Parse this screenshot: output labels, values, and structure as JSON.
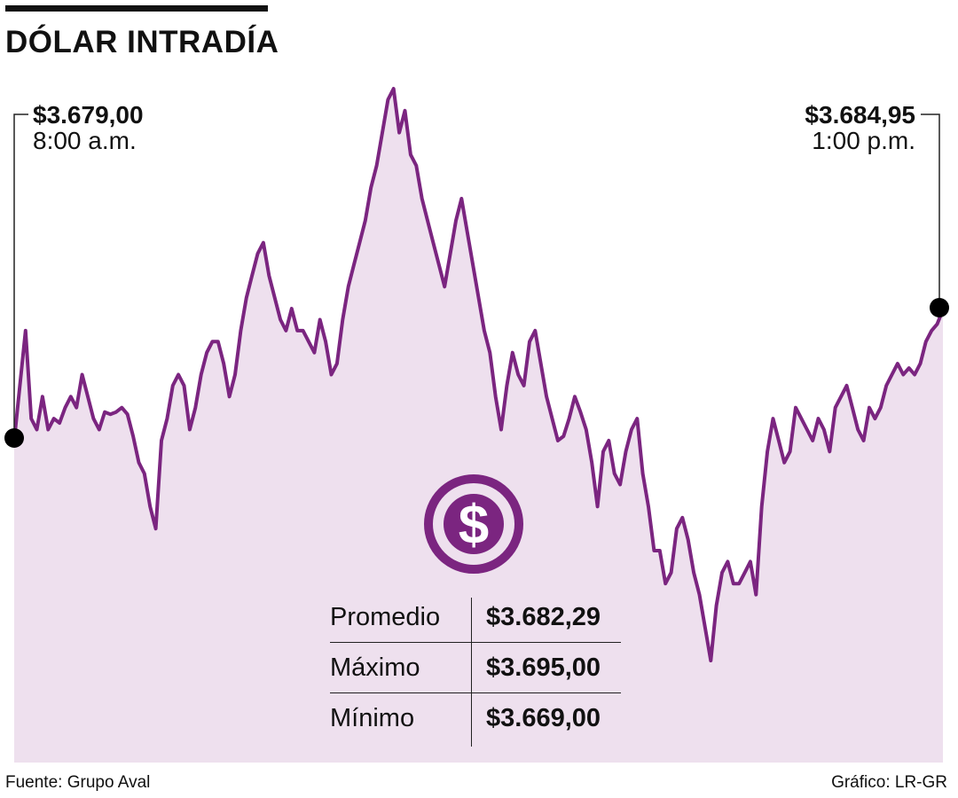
{
  "title": "DÓLAR INTRADÍA",
  "annotations": {
    "start": {
      "value": "$3.679,00",
      "time": "8:00 a.m."
    },
    "end": {
      "value": "$3.684,95",
      "time": "1:00 p.m."
    }
  },
  "stats": [
    {
      "label": "Promedio",
      "value": "$3.682,29"
    },
    {
      "label": "Máximo",
      "value": "$3.695,00"
    },
    {
      "label": "Mínimo",
      "value": "$3.669,00"
    }
  ],
  "footer": {
    "source": "Fuente: Grupo Aval",
    "credit": "Gráfico: LR-GR"
  },
  "icons": {
    "center": "dollar-coin-icon"
  },
  "colors": {
    "line": "#7b2580",
    "fill": "#eee0ee",
    "marker": "#000000"
  },
  "chart_data": {
    "type": "area",
    "title": "DÓLAR INTRADÍA",
    "xlabel": "",
    "ylabel": "",
    "x_range": [
      "8:00 a.m.",
      "1:00 p.m."
    ],
    "ylim": [
      3666,
      3696
    ],
    "grid": false,
    "series": [
      {
        "values": [
          3679.0,
          3681.5,
          3684.0,
          3680.0,
          3679.5,
          3681.0,
          3679.5,
          3680.0,
          3679.8,
          3680.5,
          3681.0,
          3680.5,
          3682.0,
          3681.0,
          3680.0,
          3679.5,
          3680.3,
          3680.2,
          3680.3,
          3680.5,
          3680.2,
          3679.2,
          3678.0,
          3677.5,
          3676.0,
          3675.0,
          3679.0,
          3680.0,
          3681.5,
          3682.0,
          3681.5,
          3679.5,
          3680.5,
          3682.0,
          3683.0,
          3683.5,
          3683.5,
          3682.5,
          3681.0,
          3682.0,
          3684.0,
          3685.5,
          3686.5,
          3687.5,
          3688.0,
          3686.5,
          3685.5,
          3684.5,
          3684.0,
          3685.0,
          3684.0,
          3684.0,
          3683.5,
          3683.0,
          3684.5,
          3683.5,
          3682.0,
          3682.5,
          3684.5,
          3686.0,
          3687.0,
          3688.0,
          3689.0,
          3690.5,
          3691.5,
          3693.0,
          3694.5,
          3695.0,
          3693.0,
          3694.0,
          3692.0,
          3691.5,
          3690.0,
          3689.0,
          3688.0,
          3687.0,
          3686.0,
          3687.5,
          3689.0,
          3690.0,
          3688.5,
          3687.0,
          3685.5,
          3684.0,
          3683.0,
          3681.0,
          3679.5,
          3681.5,
          3683.0,
          3682.0,
          3681.5,
          3683.5,
          3684.0,
          3682.5,
          3681.0,
          3680.0,
          3679.0,
          3679.2,
          3680.0,
          3681.0,
          3680.3,
          3679.5,
          3678.0,
          3676.0,
          3678.5,
          3679.0,
          3677.5,
          3677.0,
          3678.5,
          3679.5,
          3680.0,
          3677.5,
          3676.0,
          3674.0,
          3674.0,
          3672.5,
          3673.0,
          3675.0,
          3675.5,
          3674.5,
          3673.0,
          3672.0,
          3670.5,
          3669.0,
          3671.5,
          3673.0,
          3673.5,
          3672.5,
          3672.5,
          3673.0,
          3673.5,
          3672.0,
          3676.0,
          3678.5,
          3680.0,
          3679.0,
          3678.0,
          3678.5,
          3680.5,
          3680.0,
          3679.5,
          3679.0,
          3680.0,
          3679.5,
          3678.5,
          3680.5,
          3681.0,
          3681.5,
          3680.5,
          3679.5,
          3679.0,
          3680.5,
          3680.0,
          3680.5,
          3681.5,
          3682.0,
          3682.5,
          3682.0,
          3682.3,
          3682.0,
          3682.5,
          3683.5,
          3684.0,
          3684.3,
          3684.95
        ]
      }
    ]
  }
}
